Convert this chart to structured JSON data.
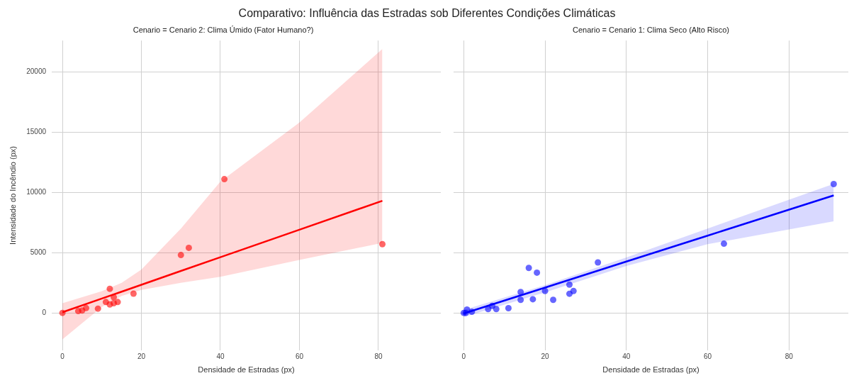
{
  "chart_data": [
    {
      "type": "scatter",
      "title": "Comparativo: Influência das Estradas sob Diferentes Condições Climáticas",
      "subtitle": "Cenario = Cenario 2: Clima Úmido (Fator Humano?)",
      "xlabel": "Densidade de Estradas (px)",
      "ylabel": "Intensidade do Incêndio (px)",
      "xlim": [
        -2.7,
        95.8
      ],
      "xticks": [
        0,
        20,
        40,
        60,
        80
      ],
      "ylim": [
        -3100,
        22600
      ],
      "yticks": [
        0,
        5000,
        10000,
        15000,
        20000
      ],
      "grid": true,
      "legend": false,
      "series": [
        {
          "marker": "circle",
          "color": "#ff0000",
          "x": [
            0,
            4,
            5,
            6,
            9,
            11,
            12,
            12,
            13,
            13,
            14,
            18,
            30,
            32,
            41,
            81
          ],
          "values": [
            0,
            150,
            200,
            400,
            350,
            900,
            2000,
            700,
            1300,
            800,
            900,
            1600,
            4800,
            5400,
            11100,
            5700
          ]
        },
        {
          "type": "line",
          "marker": "none",
          "color": "#ff0000",
          "x": [
            0,
            10,
            15,
            20,
            30,
            40,
            60,
            81
          ],
          "values": [
            50,
            1190,
            1760,
            2330,
            3480,
            4620,
            6900,
            9300
          ],
          "lower": [
            -2200,
            500,
            1400,
            1900,
            2500,
            3000,
            4400,
            5800
          ],
          "upper": [
            800,
            1800,
            2500,
            3600,
            7000,
            10900,
            15800,
            21900
          ]
        }
      ]
    },
    {
      "type": "scatter",
      "subtitle": "Cenario = Cenario 1: Clima Seco (Alto Risco)",
      "xlabel": "Densidade de Estradas (px)",
      "xlim": [
        -2.5,
        94.6
      ],
      "xticks": [
        0,
        20,
        40,
        60,
        80
      ],
      "ylim": [
        -3100,
        22600
      ],
      "yticks": [
        0,
        5000,
        10000,
        15000,
        20000
      ],
      "tick_labels": "x",
      "grid": true,
      "legend": false,
      "series": [
        {
          "marker": "circle",
          "color": "#0000ff",
          "x": [
            0,
            0.5,
            0.8,
            2,
            6,
            7,
            8,
            11,
            14,
            14,
            16,
            17,
            18,
            20,
            22,
            26,
            26,
            27,
            33,
            64,
            91
          ],
          "values": [
            0,
            0,
            280,
            90,
            320,
            580,
            320,
            390,
            1730,
            1080,
            3730,
            1130,
            3340,
            1820,
            1080,
            2350,
            1590,
            1820,
            4190,
            5740,
            10690
          ]
        },
        {
          "type": "line",
          "marker": "none",
          "color": "#0000ff",
          "x": [
            0,
            20,
            40,
            60,
            91
          ],
          "values": [
            -50,
            2100,
            4260,
            6410,
            9750
          ],
          "lower": [
            -350,
            1700,
            3900,
            5700,
            7600
          ],
          "upper": [
            250,
            2300,
            4600,
            7000,
            10700
          ]
        }
      ]
    }
  ]
}
